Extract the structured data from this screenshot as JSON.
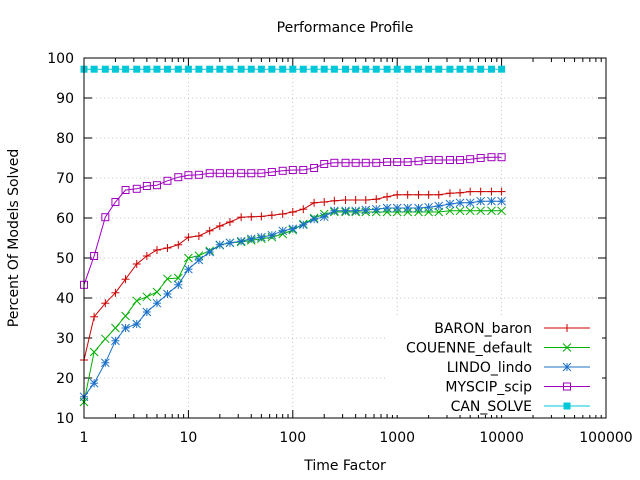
{
  "chart_data": {
    "type": "line",
    "title": "Performance Profile",
    "xlabel": "Time Factor",
    "ylabel": "Percent Of Models Solved",
    "xscale": "log",
    "xlim": [
      1,
      100000
    ],
    "ylim": [
      10,
      100
    ],
    "xticks": [
      1,
      10,
      100,
      1000,
      10000,
      100000
    ],
    "xtick_labels": [
      "1",
      "10",
      "100",
      "1000",
      "10000",
      "100000"
    ],
    "yticks": [
      10,
      20,
      30,
      40,
      50,
      60,
      70,
      80,
      90,
      100
    ],
    "ytick_labels": [
      "10",
      "20",
      "30",
      "40",
      "50",
      "60",
      "70",
      "80",
      "90",
      "100"
    ],
    "grid": true,
    "legend_position": "bottom-right",
    "series": [
      {
        "name": "BARON_baron",
        "color": "#cc0000",
        "marker": "plus",
        "x": [
          1,
          1.25,
          1.6,
          2,
          2.5,
          3.2,
          4,
          5,
          6.3,
          8,
          10,
          12.6,
          16,
          20,
          25,
          32,
          40,
          50,
          63,
          80,
          100,
          126,
          160,
          200,
          250,
          320,
          400,
          500,
          630,
          800,
          1000,
          1260,
          1600,
          2000,
          2500,
          3200,
          4000,
          5000,
          6300,
          8000,
          10000
        ],
        "y": [
          24.5,
          35.3,
          38.7,
          41.3,
          44.7,
          48.5,
          50.5,
          52.0,
          52.5,
          53.3,
          55.2,
          55.5,
          56.8,
          58.0,
          59.0,
          60.2,
          60.3,
          60.4,
          60.7,
          61.0,
          61.5,
          62.2,
          63.8,
          64.0,
          64.3,
          64.5,
          64.5,
          64.5,
          64.7,
          65.3,
          65.8,
          65.8,
          65.8,
          65.8,
          65.8,
          66.2,
          66.3,
          66.6,
          66.6,
          66.6,
          66.6
        ]
      },
      {
        "name": "COUENNE_default",
        "color": "#00b000",
        "marker": "cross",
        "x": [
          1,
          1.25,
          1.6,
          2,
          2.5,
          3.2,
          4,
          5,
          6.3,
          8,
          10,
          12.6,
          16,
          20,
          25,
          32,
          40,
          50,
          63,
          80,
          100,
          126,
          160,
          200,
          250,
          320,
          400,
          500,
          630,
          800,
          1000,
          1260,
          1600,
          2000,
          2500,
          3200,
          4000,
          5000,
          6300,
          8000,
          10000
        ],
        "y": [
          14.0,
          26.5,
          29.8,
          32.5,
          35.5,
          39.3,
          40.3,
          41.5,
          44.8,
          45.0,
          50.0,
          50.6,
          51.8,
          53.2,
          53.8,
          54.0,
          54.4,
          54.8,
          55.2,
          56.0,
          57.0,
          58.5,
          60.0,
          61.0,
          61.5,
          61.5,
          61.5,
          61.5,
          61.5,
          61.5,
          61.5,
          61.5,
          61.5,
          61.5,
          61.5,
          61.8,
          61.8,
          61.8,
          61.8,
          61.8,
          61.8
        ]
      },
      {
        "name": "LINDO_lindo",
        "color": "#1a70c8",
        "marker": "star",
        "x": [
          1,
          1.25,
          1.6,
          2,
          2.5,
          3.2,
          4,
          5,
          6.3,
          8,
          10,
          12.6,
          16,
          20,
          25,
          32,
          40,
          50,
          63,
          80,
          100,
          126,
          160,
          200,
          250,
          320,
          400,
          500,
          630,
          800,
          1000,
          1260,
          1600,
          2000,
          2500,
          3200,
          4000,
          5000,
          6300,
          8000,
          10000
        ],
        "y": [
          15.3,
          18.7,
          23.8,
          29.3,
          32.5,
          33.5,
          36.5,
          38.7,
          41.0,
          43.3,
          47.2,
          49.5,
          51.5,
          53.3,
          53.8,
          54.2,
          54.8,
          55.2,
          55.7,
          56.8,
          57.3,
          58.3,
          59.7,
          60.3,
          61.8,
          61.8,
          61.8,
          62.0,
          62.2,
          62.5,
          62.5,
          62.5,
          62.5,
          62.7,
          63.0,
          63.5,
          63.8,
          63.8,
          64.2,
          64.2,
          64.2
        ]
      },
      {
        "name": "MYSCIP_scip",
        "color": "#a000c0",
        "marker": "square",
        "x": [
          1,
          1.25,
          1.6,
          2,
          2.5,
          3.2,
          4,
          5,
          6.3,
          8,
          10,
          12.6,
          16,
          20,
          25,
          32,
          40,
          50,
          63,
          80,
          100,
          126,
          160,
          200,
          250,
          320,
          400,
          500,
          630,
          800,
          1000,
          1260,
          1600,
          2000,
          2500,
          3200,
          4000,
          5000,
          6300,
          8000,
          10000
        ],
        "y": [
          43.3,
          50.5,
          60.2,
          64.0,
          67.0,
          67.3,
          68.0,
          68.2,
          69.3,
          70.2,
          70.7,
          70.8,
          71.2,
          71.2,
          71.2,
          71.2,
          71.2,
          71.2,
          71.5,
          71.8,
          72.0,
          72.0,
          72.5,
          73.5,
          73.8,
          73.8,
          73.8,
          73.8,
          73.8,
          74.0,
          74.0,
          74.0,
          74.2,
          74.5,
          74.5,
          74.5,
          74.5,
          74.7,
          75.0,
          75.2,
          75.2
        ]
      },
      {
        "name": "CAN_SOLVE",
        "color": "#00c8d8",
        "marker": "filled-square",
        "x": [
          1,
          1.25,
          1.6,
          2,
          2.5,
          3.2,
          4,
          5,
          6.3,
          8,
          10,
          12.6,
          16,
          20,
          25,
          32,
          40,
          50,
          63,
          80,
          100,
          126,
          160,
          200,
          250,
          320,
          400,
          500,
          630,
          800,
          1000,
          1260,
          1600,
          2000,
          2500,
          3200,
          4000,
          5000,
          6300,
          8000,
          10000
        ],
        "y": [
          97.2,
          97.2,
          97.2,
          97.2,
          97.2,
          97.2,
          97.2,
          97.2,
          97.2,
          97.2,
          97.2,
          97.2,
          97.2,
          97.2,
          97.2,
          97.2,
          97.2,
          97.2,
          97.2,
          97.2,
          97.2,
          97.2,
          97.2,
          97.2,
          97.2,
          97.2,
          97.2,
          97.2,
          97.2,
          97.2,
          97.2,
          97.2,
          97.2,
          97.2,
          97.2,
          97.2,
          97.2,
          97.2,
          97.2,
          97.2,
          97.2
        ]
      }
    ]
  }
}
